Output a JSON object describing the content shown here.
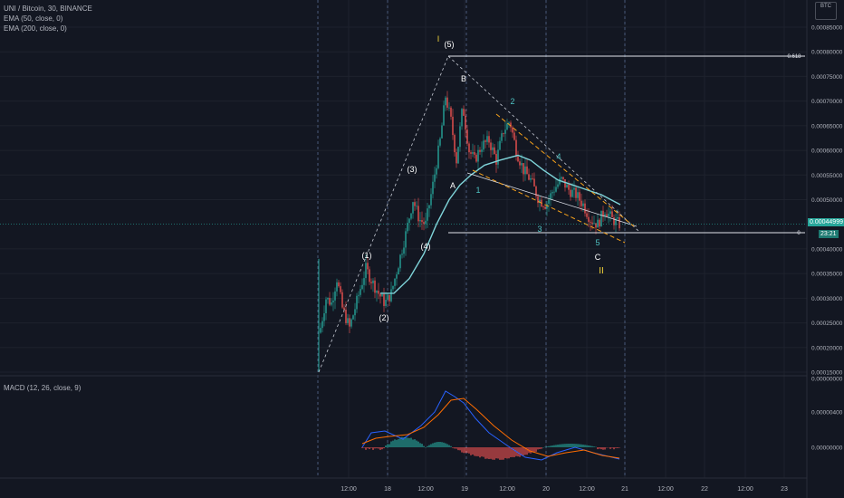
{
  "header": {
    "symbol_line": "UNI / Bitcoin, 30, BINANCE",
    "ema50_label": "EMA (50, close, 0)",
    "ema200_label": "EMA (200, close, 0)",
    "macd_label": "MACD (12, 26, close, 9)",
    "currency_top": "",
    "currency_bottom": "BTC"
  },
  "price_axis": {
    "ticks": [
      "0.00085000",
      "0.00080000",
      "0.00075000",
      "0.00070000",
      "0.00065000",
      "0.00060000",
      "0.00055000",
      "0.00050000",
      "0.00040000",
      "0.00035000",
      "0.00030000",
      "0.00025000",
      "0.00020000",
      "0.00015000"
    ],
    "last_price": "0.00044999",
    "countdown": "23:21"
  },
  "time_axis": {
    "ticks": [
      "12:00",
      "18",
      "12:00",
      "19",
      "12:00",
      "20",
      "12:00",
      "21",
      "12:00",
      "22",
      "12:00",
      "23"
    ]
  },
  "macd_axis": {
    "ticks": [
      "0.00000000",
      "0.00000400",
      "0.00000000"
    ]
  },
  "annotations": {
    "fib_top_label": "0.618",
    "fib_bottom_label": "0",
    "wave_I": "I",
    "wave_II": "II",
    "w1": "(1)",
    "w2": "(2)",
    "w3": "(3)",
    "w4": "(4)",
    "w5": "(5)",
    "A": "A",
    "B": "B",
    "C": "C",
    "sub2": "2",
    "sub1": "1",
    "sub3": "3",
    "sub4": "4",
    "sub5": "5"
  },
  "colors": {
    "background": "#131722",
    "up": "#26a69a",
    "down": "#ef5350",
    "ema50": "#7fd4d9",
    "grid": "#1e222d",
    "dashed_vertical": "#4a5a7a",
    "fib_line": "#e0e3eb",
    "orange_channel": "#f7a21b",
    "yellow_label": "#f5d63a",
    "cyan_label": "#4fc3c3",
    "macd_line": "#2962ff",
    "signal_line": "#ff6d00",
    "last_price_tag": "#26a69a"
  },
  "chart_data": {
    "type": "line",
    "title": "UNI / Bitcoin, 30, BINANCE",
    "ylim": [
      0.00015,
      0.00087
    ],
    "x": [
      "17 12:00",
      "18 00:00",
      "18 12:00",
      "19 00:00",
      "19 12:00",
      "20 00:00",
      "20 12:00",
      "21 00:00"
    ],
    "series": [
      {
        "name": "EMA (50, close, 0)",
        "values": [
          0.0003,
          0.00031,
          0.00041,
          0.00056,
          0.00058,
          0.00052,
          0.00049,
          0.00048
        ]
      }
    ],
    "price_path": [
      [
        0.00024,
        0.00031,
        0.00027
      ],
      [
        0.00036,
        0.00029,
        0.00033
      ],
      [
        0.00029,
        0.00043,
        0.00045
      ],
      [
        0.00056,
        0.00075,
        0.00067
      ],
      [
        0.00069,
        0.00057,
        0.00063
      ],
      [
        0.00053,
        0.00049,
        0.00051
      ],
      [
        0.0005,
        0.00045,
        0.00045
      ]
    ],
    "last_price": 0.00044999,
    "fib_levels": [
      {
        "label": "0.618",
        "value": 0.00079
      },
      {
        "label": "0",
        "value": 0.00043
      }
    ]
  }
}
